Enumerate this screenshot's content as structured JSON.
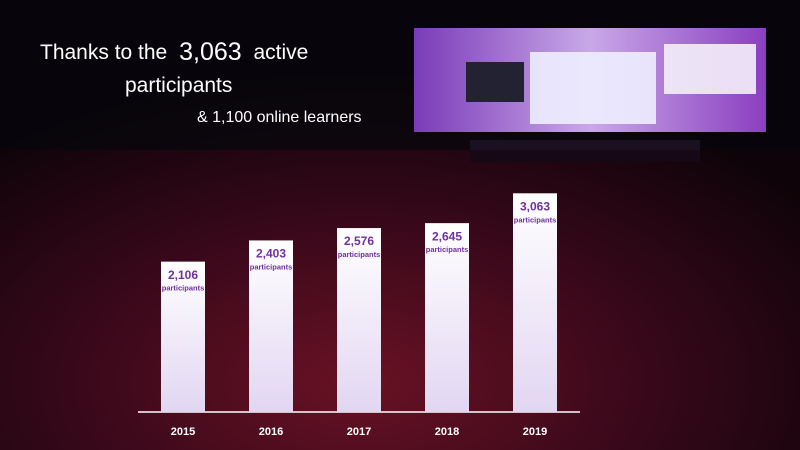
{
  "chart_data": {
    "type": "bar",
    "title": [
      "Thanks to the",
      "3,063",
      "active",
      "participants"
    ],
    "subtitle": "& 1,100 online learners",
    "categories": [
      "2015",
      "2016",
      "2017",
      "2018",
      "2019"
    ],
    "values": [
      2106,
      2403,
      2576,
      2645,
      3063
    ],
    "value_labels": [
      "2,106",
      "2,403",
      "2,576",
      "2,645",
      "3,063"
    ],
    "value_unit": "participants",
    "color": "#ffffff",
    "label_color": "#7030a0"
  }
}
